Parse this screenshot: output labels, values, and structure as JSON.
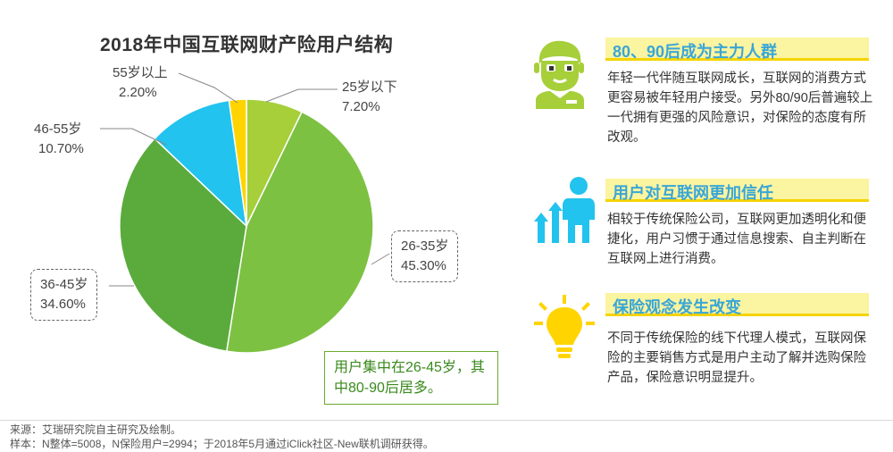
{
  "chart_data": {
    "type": "pie",
    "title": "2018年中国互联网财产险用户结构",
    "slices": [
      {
        "label": "25岁以下",
        "value": 7.2,
        "display": "7.20%",
        "color": "#a6cf3a"
      },
      {
        "label": "26-35岁",
        "value": 45.3,
        "display": "45.30%",
        "color": "#7dc142"
      },
      {
        "label": "36-45岁",
        "value": 34.6,
        "display": "34.60%",
        "color": "#5aab3c"
      },
      {
        "label": "46-55岁",
        "value": 10.7,
        "display": "10.70%",
        "color": "#22c3ee"
      },
      {
        "label": "55岁以上",
        "value": 2.2,
        "display": "2.20%",
        "color": "#ffd400"
      }
    ],
    "callout": "用户集中在26-45岁，其中80-90后居多。"
  },
  "panels": [
    {
      "title": "80、90后成为主力人群",
      "text": "年轻一代伴随互联网成长，互联网的消费方式更容易被年轻用户接受。另外80/90后普遍较上一代拥有更强的风险意识，对保险的态度有所改观。",
      "icon": "young-person-icon"
    },
    {
      "title": "用户对互联网更加信任",
      "text": "相较于传统保险公司，互联网更加透明化和便捷化，用户习惯于通过信息搜索、自主判断在互联网上进行消费。",
      "icon": "growth-person-icon"
    },
    {
      "title": "保险观念发生改变",
      "text": "不同于传统保险的线下代理人模式，互联网保险的主要销售方式是用户主动了解并选购保险产品，保险意识明显提升。",
      "icon": "lightbulb-icon"
    }
  ],
  "colors": {
    "accent_blue": "#3aa6d6",
    "highlight_yellow": "#fbf4a0",
    "icon_green": "#a6cf3a",
    "icon_blue": "#22c3ee",
    "icon_yellow": "#ffd400"
  },
  "footer": {
    "source": "来源：艾瑞研究院自主研究及绘制。",
    "sample": "样本：N整体=5008，N保险用户=2994；于2018年5月通过iClick社区-New联机调研获得。"
  }
}
